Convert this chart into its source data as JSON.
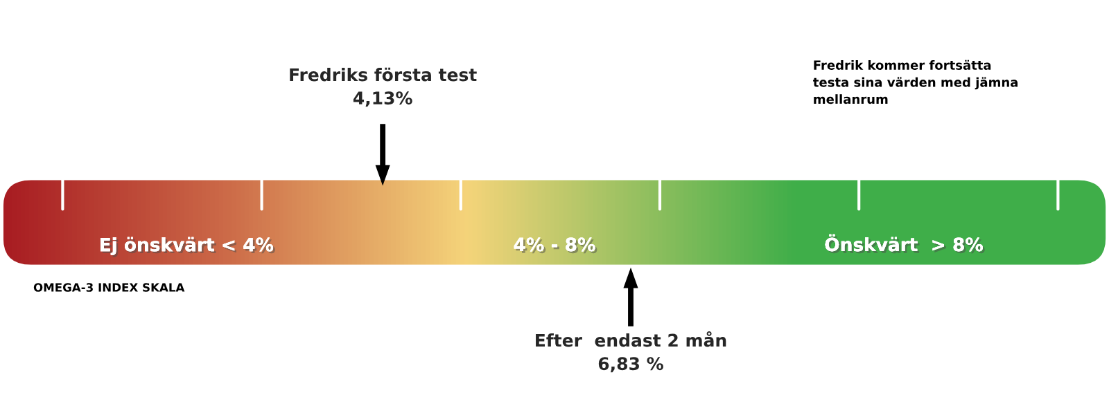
{
  "chart_data": {
    "type": "other",
    "categories": [
      "Fredriks första test",
      "Efter  endast 2 mån"
    ],
    "values": [
      4.13,
      6.83
    ],
    "value_labels": [
      "4,13%",
      "6,83 %"
    ],
    "annotations": [
      "Ej önskvärt < 4%",
      "4% - 8%",
      "Önskvärt  > 8%",
      "Fredrik kommer fortsätta\ntesta sina värden med jämna\nmellanrum",
      "OMEGA-3 INDEX SKALA"
    ]
  }
}
